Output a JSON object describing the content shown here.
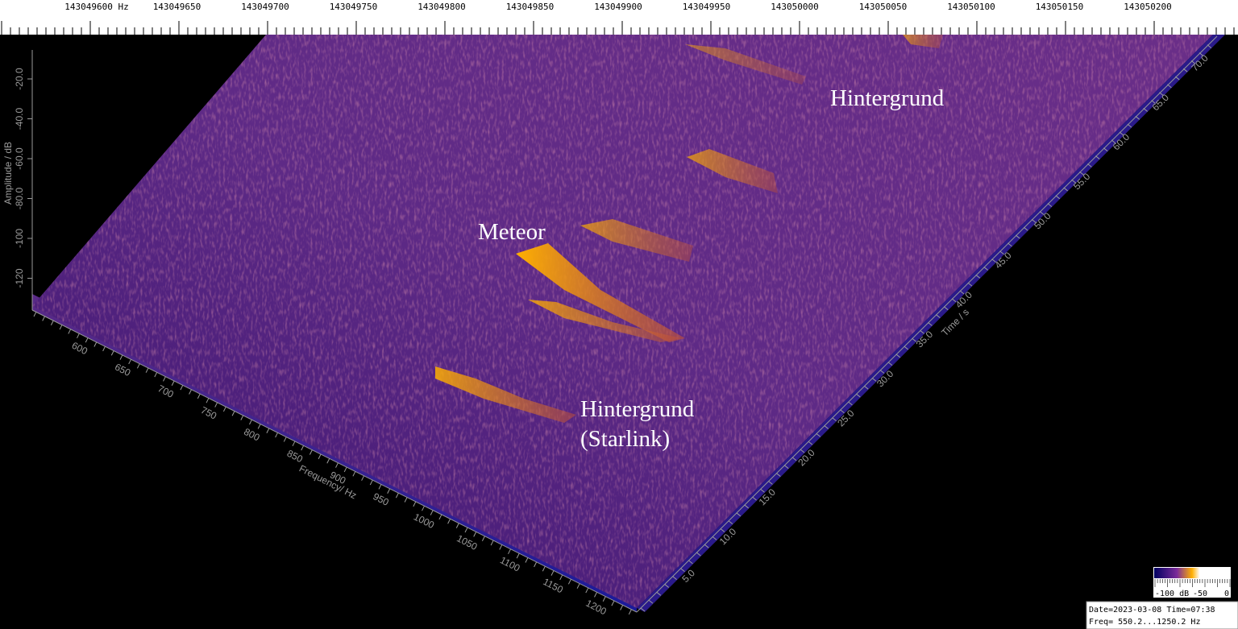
{
  "ruler": {
    "labels": [
      "143049600 Hz",
      "143049650",
      "143049700",
      "143049750",
      "143049800",
      "143049850",
      "143049900",
      "143049950",
      "143050000",
      "143050050",
      "143050100",
      "143050150",
      "143050200"
    ]
  },
  "amplitude_axis": {
    "title": "Amplitude / dB",
    "labels": [
      "-20.0",
      "-40.0",
      "-60.0",
      "-80.0",
      "-100",
      "-120"
    ]
  },
  "frequency_axis": {
    "title": "Frequency/ Hz",
    "labels": [
      "600",
      "650",
      "700",
      "750",
      "800",
      "850",
      "900",
      "950",
      "1000",
      "1050",
      "1100",
      "1150",
      "1200"
    ]
  },
  "time_axis": {
    "title": "Time / s",
    "labels": [
      "5.0",
      "10.0",
      "15.0",
      "20.0",
      "25.0",
      "30.0",
      "35.0",
      "40.0",
      "45.0",
      "50.0",
      "55.0",
      "60.0",
      "65.0",
      "70.0"
    ]
  },
  "annotations": {
    "meteor": "Meteor",
    "background_top": "Hintergrund",
    "background_starlink": [
      "Hintergrund",
      "(Starlink)"
    ]
  },
  "colorbar": {
    "labels": [
      "-100 dB",
      "-50",
      "0"
    ]
  },
  "info": {
    "date_line": "Date=2023-03-08 Time=07:38",
    "freq_line": "Freq= 550.2...1250.2 Hz"
  }
}
